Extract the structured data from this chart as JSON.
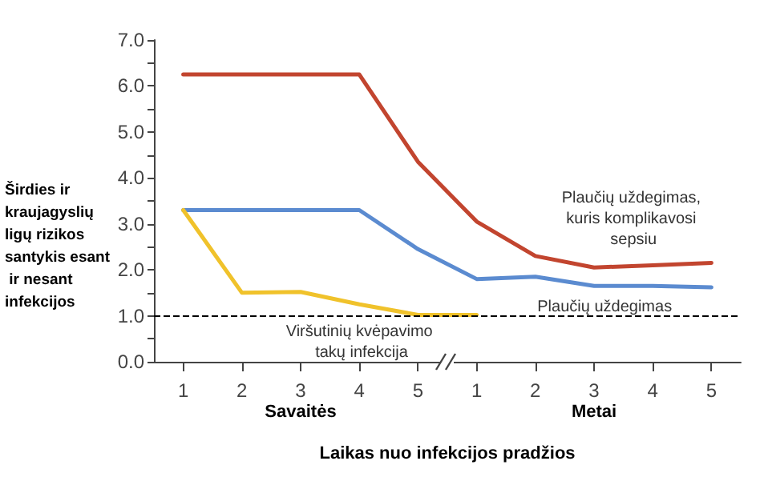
{
  "chart_data": {
    "type": "line",
    "xlabel": "Laikas nuo infekcijos pradžios",
    "ylabel": "Širdies ir kraujagyslių ligų rizikos santykis esant ir nesant infekcijos",
    "categories": [
      "1",
      "2",
      "3",
      "4",
      "5",
      "1",
      "2",
      "3",
      "4",
      "5"
    ],
    "series": [
      {
        "name": "Plaučių uždegimas, kuris komplikavosi sepsiu",
        "color": "#c2452f",
        "values": [
          6.25,
          6.25,
          6.25,
          6.25,
          4.35,
          3.05,
          2.3,
          2.05,
          2.1,
          2.15
        ]
      },
      {
        "name": "Plaučių uždegimas",
        "color": "#5b8bd0",
        "values": [
          3.3,
          3.3,
          3.3,
          3.3,
          2.45,
          1.8,
          1.85,
          1.65,
          1.65,
          1.62
        ]
      },
      {
        "name": "Viršutinių kvėpavimo takų infekcija",
        "color": "#f0c22b",
        "values": [
          3.3,
          1.5,
          1.52,
          1.25,
          1.02,
          1.02,
          null,
          null,
          null,
          null
        ]
      }
    ],
    "ylim": [
      0,
      7
    ],
    "yticks": [
      {
        "value": 0,
        "label": "0.0"
      },
      {
        "value": 0.5,
        "label": null
      },
      {
        "value": 1,
        "label": "1.0"
      },
      {
        "value": 1.5,
        "label": null
      },
      {
        "value": 2,
        "label": "2.0"
      },
      {
        "value": 2.5,
        "label": null
      },
      {
        "value": 3,
        "label": "3.0"
      },
      {
        "value": 3.5,
        "label": null
      },
      {
        "value": 4,
        "label": "4.0"
      },
      {
        "value": 4.5,
        "label": null
      },
      {
        "value": 5,
        "label": "5.0"
      },
      {
        "value": 5.5,
        "label": null
      },
      {
        "value": 6,
        "label": "6.0"
      },
      {
        "value": 6.5,
        "label": null
      },
      {
        "value": 7,
        "label": "7.0"
      }
    ],
    "ref_lines": [
      {
        "axis": "y",
        "value": 1,
        "color": "#000000",
        "line_style": "dashed"
      }
    ],
    "annotations": [
      "Savaitės",
      "Metai"
    ],
    "grid": false,
    "legend": false,
    "marker": "none",
    "line_style": "solid"
  }
}
